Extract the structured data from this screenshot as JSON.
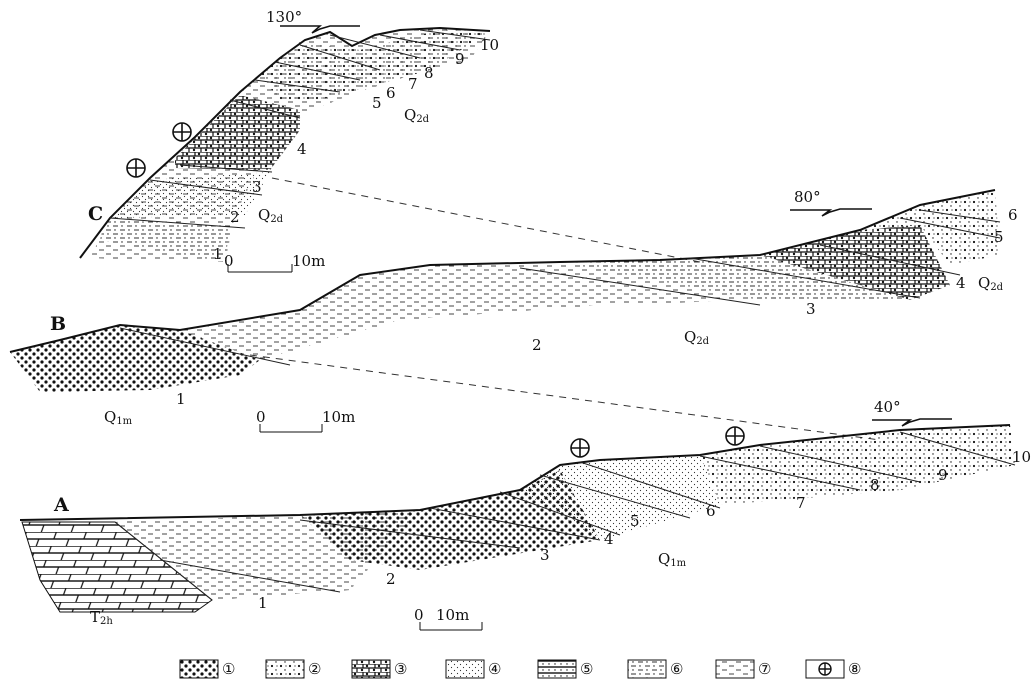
{
  "sections": [
    {
      "id_label": "C",
      "bearing": "130°",
      "beds": [
        "1",
        "2",
        "3",
        "4",
        "5",
        "6",
        "7",
        "8",
        "9",
        "10"
      ],
      "formations": [
        {
          "main": "Q",
          "sub": "2d"
        },
        {
          "main": "Q",
          "sub": "2d"
        }
      ],
      "scale": {
        "zero": "0",
        "length": "10m"
      }
    },
    {
      "id_label": "B",
      "bearing": "80°",
      "beds": [
        "1",
        "2",
        "3",
        "4",
        "5",
        "6"
      ],
      "formations": [
        {
          "main": "Q",
          "sub": "1m"
        },
        {
          "main": "Q",
          "sub": "2d"
        },
        {
          "main": "Q",
          "sub": "2d"
        }
      ],
      "scale": {
        "zero": "0",
        "length": "10m"
      }
    },
    {
      "id_label": "A",
      "bearing": "40°",
      "beds": [
        "1",
        "2",
        "3",
        "4",
        "5",
        "6",
        "7",
        "8",
        "9",
        "10"
      ],
      "formations": [
        {
          "main": "Q",
          "sub": "1m"
        },
        {
          "main": "T",
          "sub": "2h"
        }
      ],
      "scale": {
        "zero": "0",
        "length": "10m"
      }
    }
  ],
  "legend": [
    "①",
    "②",
    "③",
    "④",
    "⑤",
    "⑥",
    "⑦",
    "⑧"
  ]
}
